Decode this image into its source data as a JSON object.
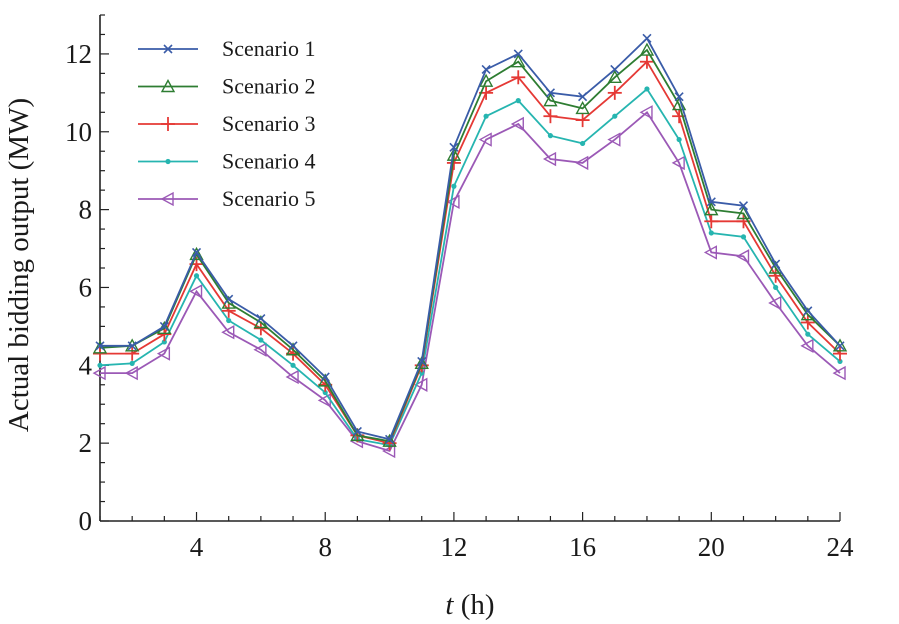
{
  "chart_data": {
    "type": "line",
    "title": "",
    "xlabel_var": "t",
    "xlabel_unit": " (h)",
    "ylabel": "Actual bidding  output (MW)",
    "xlim": [
      1,
      24
    ],
    "ylim": [
      0,
      13
    ],
    "xticks": [
      4,
      8,
      12,
      16,
      20,
      24
    ],
    "yticks": [
      0,
      2,
      4,
      6,
      8,
      10,
      12
    ],
    "x": [
      1,
      2,
      3,
      4,
      5,
      6,
      7,
      8,
      9,
      10,
      11,
      12,
      13,
      14,
      15,
      16,
      17,
      18,
      19,
      20,
      21,
      22,
      23,
      24
    ],
    "legend_position": "top-left",
    "series": [
      {
        "name": "Scenario 1",
        "color": "#3a5ca8",
        "marker": "x",
        "values": [
          4.5,
          4.5,
          5.0,
          6.9,
          5.7,
          5.2,
          4.5,
          3.7,
          2.3,
          2.1,
          4.1,
          9.6,
          11.6,
          12.0,
          11.0,
          10.9,
          11.6,
          12.4,
          10.9,
          8.2,
          8.1,
          6.6,
          5.4,
          4.5
        ]
      },
      {
        "name": "Scenario 2",
        "color": "#2e7d32",
        "marker": "triangle",
        "values": [
          4.45,
          4.5,
          4.95,
          6.85,
          5.6,
          5.1,
          4.4,
          3.6,
          2.2,
          2.05,
          4.05,
          9.4,
          11.3,
          11.8,
          10.8,
          10.6,
          11.4,
          12.1,
          10.7,
          8.0,
          7.9,
          6.5,
          5.3,
          4.5
        ]
      },
      {
        "name": "Scenario 3",
        "color": "#e53935",
        "marker": "plus",
        "values": [
          4.3,
          4.3,
          4.8,
          6.6,
          5.4,
          4.95,
          4.3,
          3.5,
          2.2,
          2.0,
          4.0,
          9.2,
          11.0,
          11.4,
          10.4,
          10.3,
          11.0,
          11.8,
          10.4,
          7.7,
          7.7,
          6.3,
          5.1,
          4.3
        ]
      },
      {
        "name": "Scenario 4",
        "color": "#26b5b0",
        "marker": "dot",
        "values": [
          4.0,
          4.05,
          4.6,
          6.3,
          5.15,
          4.65,
          4.0,
          3.3,
          2.1,
          1.95,
          3.8,
          8.6,
          10.4,
          10.8,
          9.9,
          9.7,
          10.4,
          11.1,
          9.8,
          7.4,
          7.3,
          6.0,
          4.8,
          4.1
        ]
      },
      {
        "name": "Scenario 5",
        "color": "#9b59b6",
        "marker": "triangle-left",
        "values": [
          3.8,
          3.8,
          4.3,
          5.9,
          4.85,
          4.4,
          3.7,
          3.1,
          2.05,
          1.8,
          3.5,
          8.2,
          9.8,
          10.2,
          9.3,
          9.2,
          9.8,
          10.5,
          9.2,
          6.9,
          6.8,
          5.6,
          4.5,
          3.8
        ]
      }
    ]
  }
}
